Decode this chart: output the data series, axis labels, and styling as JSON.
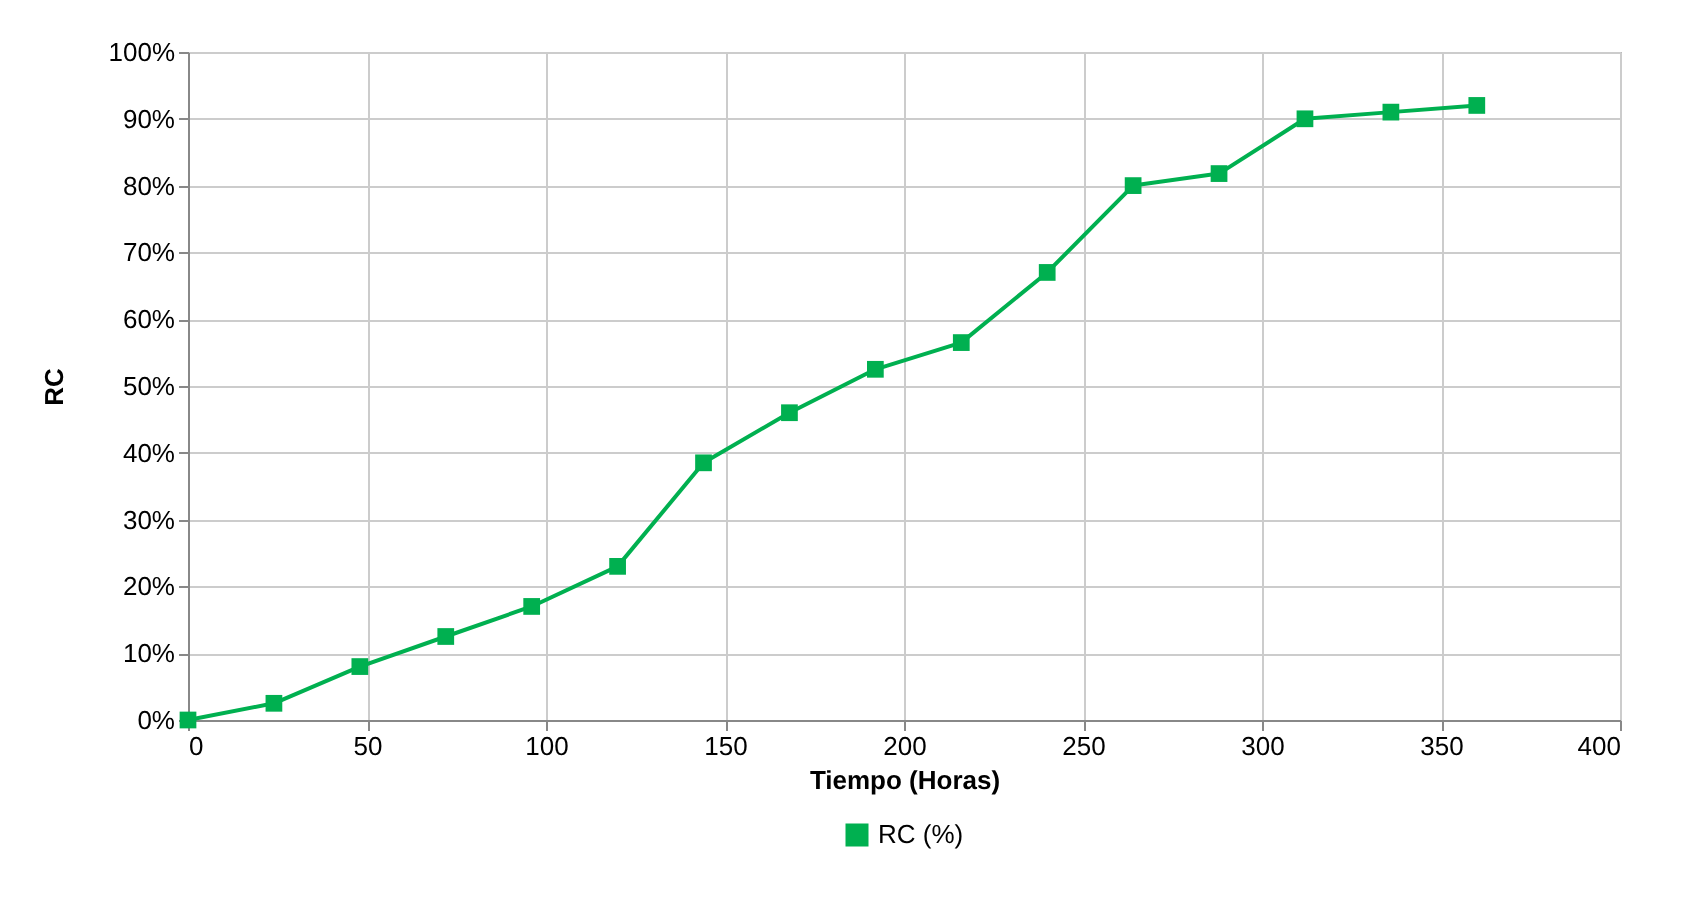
{
  "chart_data": {
    "type": "line",
    "xlabel": "Tiempo (Horas)",
    "ylabel": "RC",
    "x": [
      0,
      24,
      48,
      72,
      96,
      120,
      144,
      168,
      192,
      216,
      240,
      264,
      288,
      312,
      336,
      360
    ],
    "series": [
      {
        "name": "RC (%)",
        "color": "#00b050",
        "values": [
          0,
          2.5,
          8,
          12.5,
          17,
          23,
          38.5,
          46,
          52.5,
          56.5,
          67,
          80,
          81.8,
          90,
          91,
          92
        ]
      }
    ],
    "xlim": [
      0,
      400
    ],
    "xticks": [
      0,
      50,
      100,
      150,
      200,
      250,
      300,
      350,
      400
    ],
    "ylim": [
      0,
      100
    ],
    "yticks": [
      {
        "value": 0,
        "label": "0%"
      },
      {
        "value": 10,
        "label": "10%"
      },
      {
        "value": 20,
        "label": "20%"
      },
      {
        "value": 30,
        "label": "30%"
      },
      {
        "value": 40,
        "label": "40%"
      },
      {
        "value": 50,
        "label": "50%"
      },
      {
        "value": 60,
        "label": "60%"
      },
      {
        "value": 70,
        "label": "70%"
      },
      {
        "value": 80,
        "label": "80%"
      },
      {
        "value": 90,
        "label": "90%"
      },
      {
        "value": 100,
        "label": "100%"
      }
    ],
    "grid": true,
    "legend": "bottom",
    "marker": "square",
    "line_style": "solid"
  }
}
